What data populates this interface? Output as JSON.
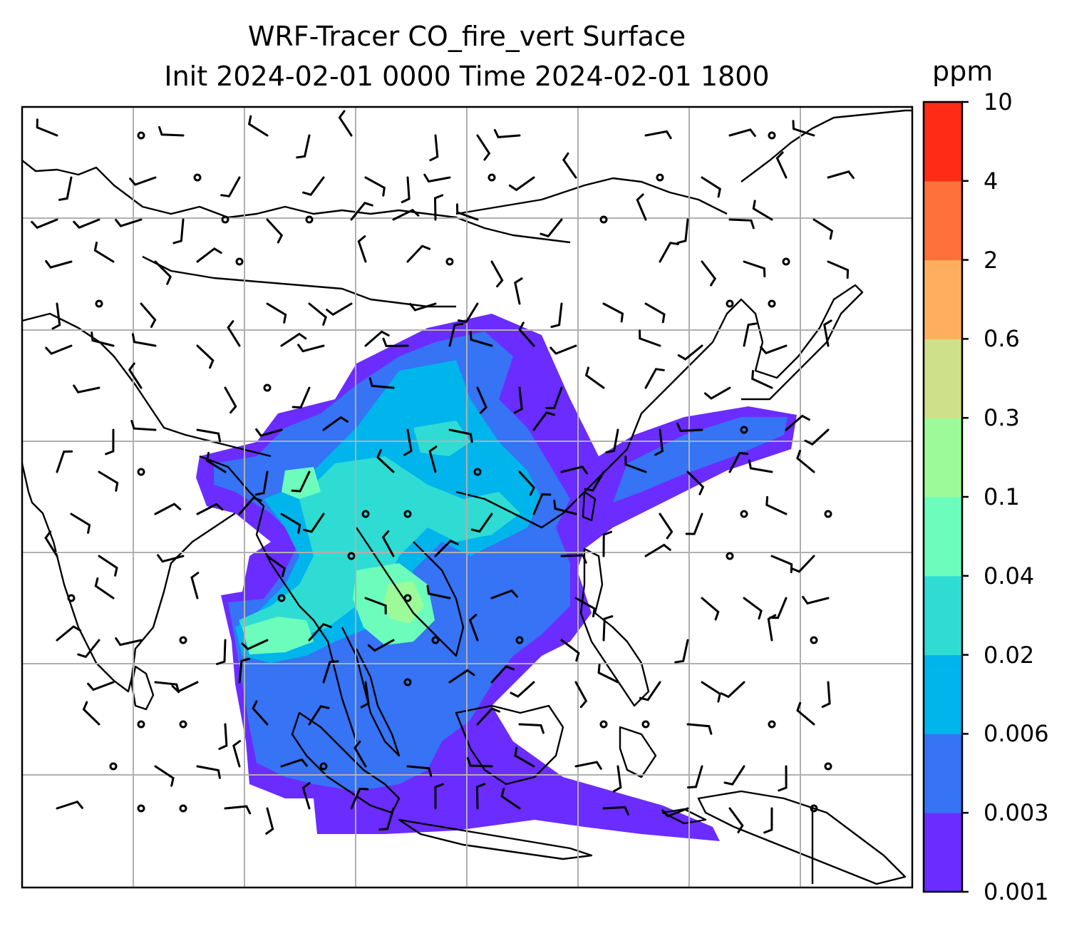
{
  "title": {
    "line1": "WRF-Tracer CO_fire_vert Surface",
    "line2": "Init 2024-02-01 0000 Time 2024-02-01 1800"
  },
  "colorbar": {
    "unit": "ppm",
    "levels": [
      "0.001",
      "0.003",
      "0.006",
      "0.02",
      "0.04",
      "0.1",
      "0.3",
      "0.6",
      "2",
      "4",
      "10"
    ],
    "colors": [
      "#6b2cff",
      "#3673f5",
      "#00b4ec",
      "#2fdcd3",
      "#6cfdbd",
      "#9cfb98",
      "#cfe08a",
      "#ffae60",
      "#ff703a",
      "#ff2b17"
    ]
  },
  "map": {
    "grid": true,
    "coastline_color": "#000000",
    "grid_color": "#b0b0b0"
  }
}
